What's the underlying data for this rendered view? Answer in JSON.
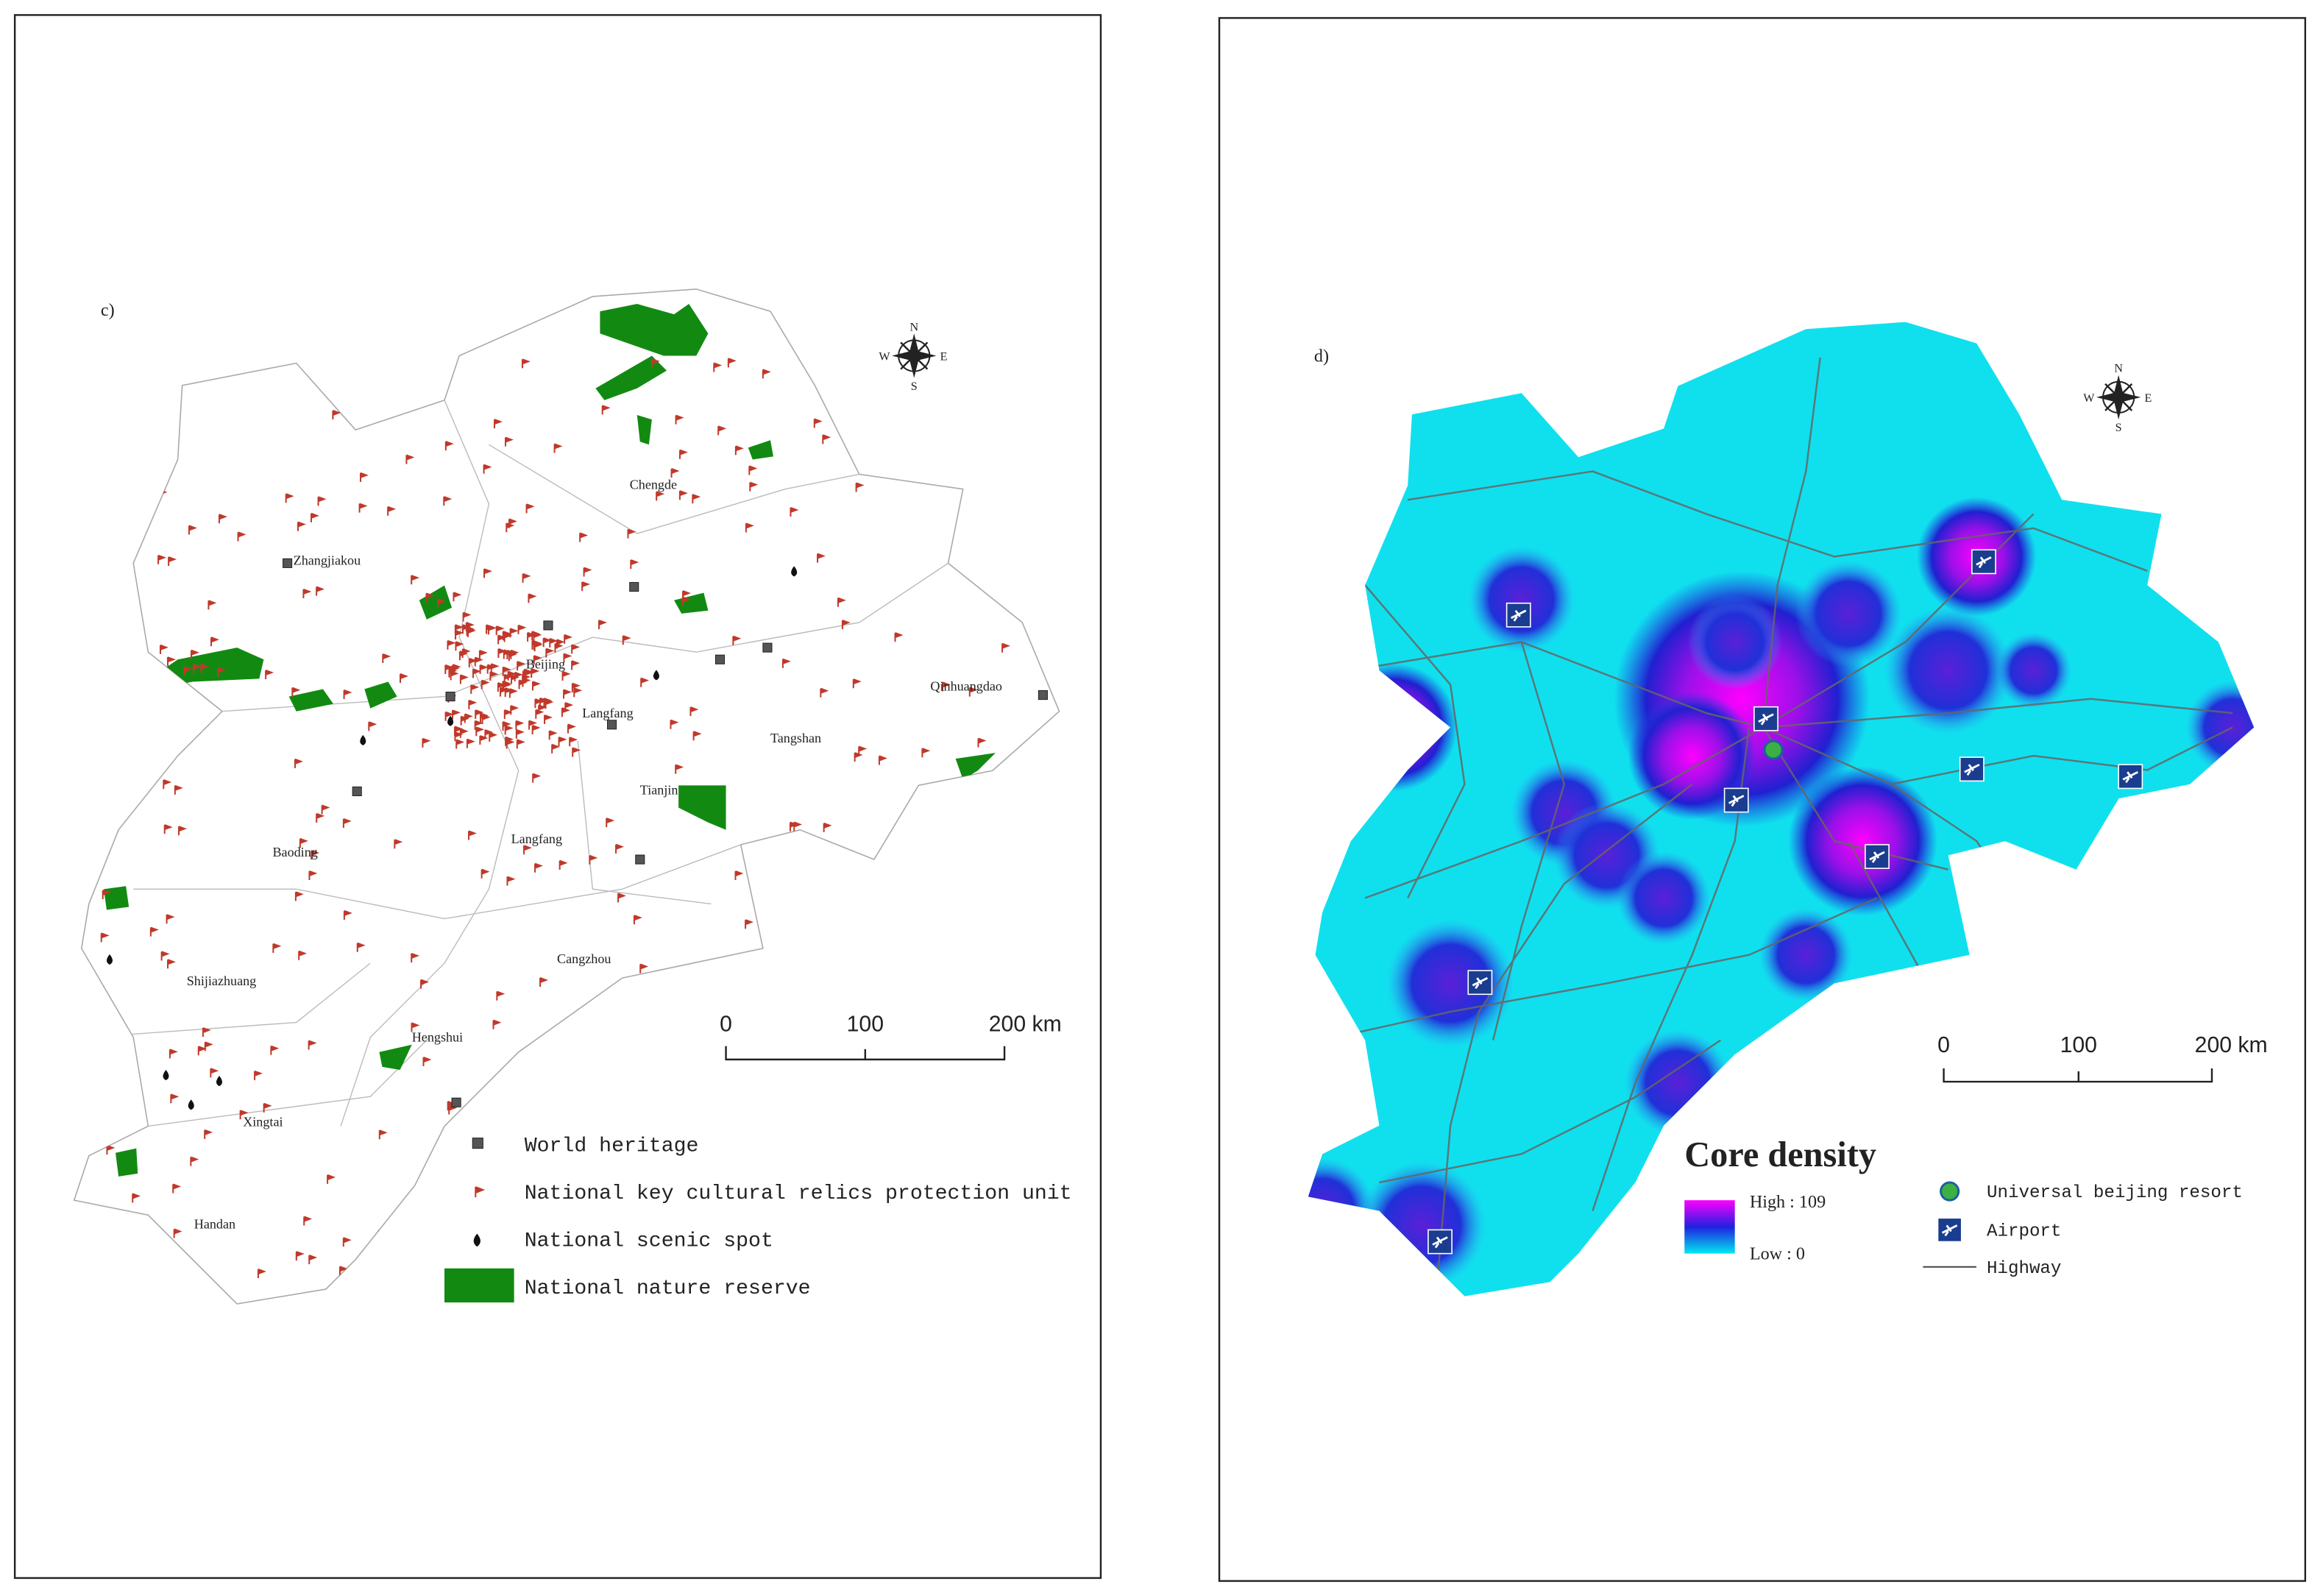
{
  "panel_c": {
    "label": "c)",
    "compass": [
      "N",
      "S",
      "E",
      "W"
    ],
    "cities": [
      "Chengde",
      "Zhangjiakou",
      "Beijing",
      "Langfang",
      "Qinhuangdao",
      "Tangshan",
      "Tianjin",
      "Baoding",
      "Langfang",
      "Shijiazhuang",
      "Cangzhou",
      "Hengshui",
      "Xingtai",
      "Handan"
    ],
    "scale_bar": [
      "0",
      "100",
      "200 km"
    ],
    "legend": [
      "World heritage",
      "National key cultural relics protection unit",
      "National scenic spot",
      "National nature reserve"
    ]
  },
  "panel_d": {
    "label": "d)",
    "compass": [
      "N",
      "S",
      "E",
      "W"
    ],
    "scale_bar": [
      "0",
      "100",
      "200 km"
    ],
    "legend_title": "Core density",
    "density_high": "High : 109",
    "density_low": "Low : 0",
    "legend": [
      "Universal beijing resort",
      "Airport",
      "Highway"
    ]
  }
}
